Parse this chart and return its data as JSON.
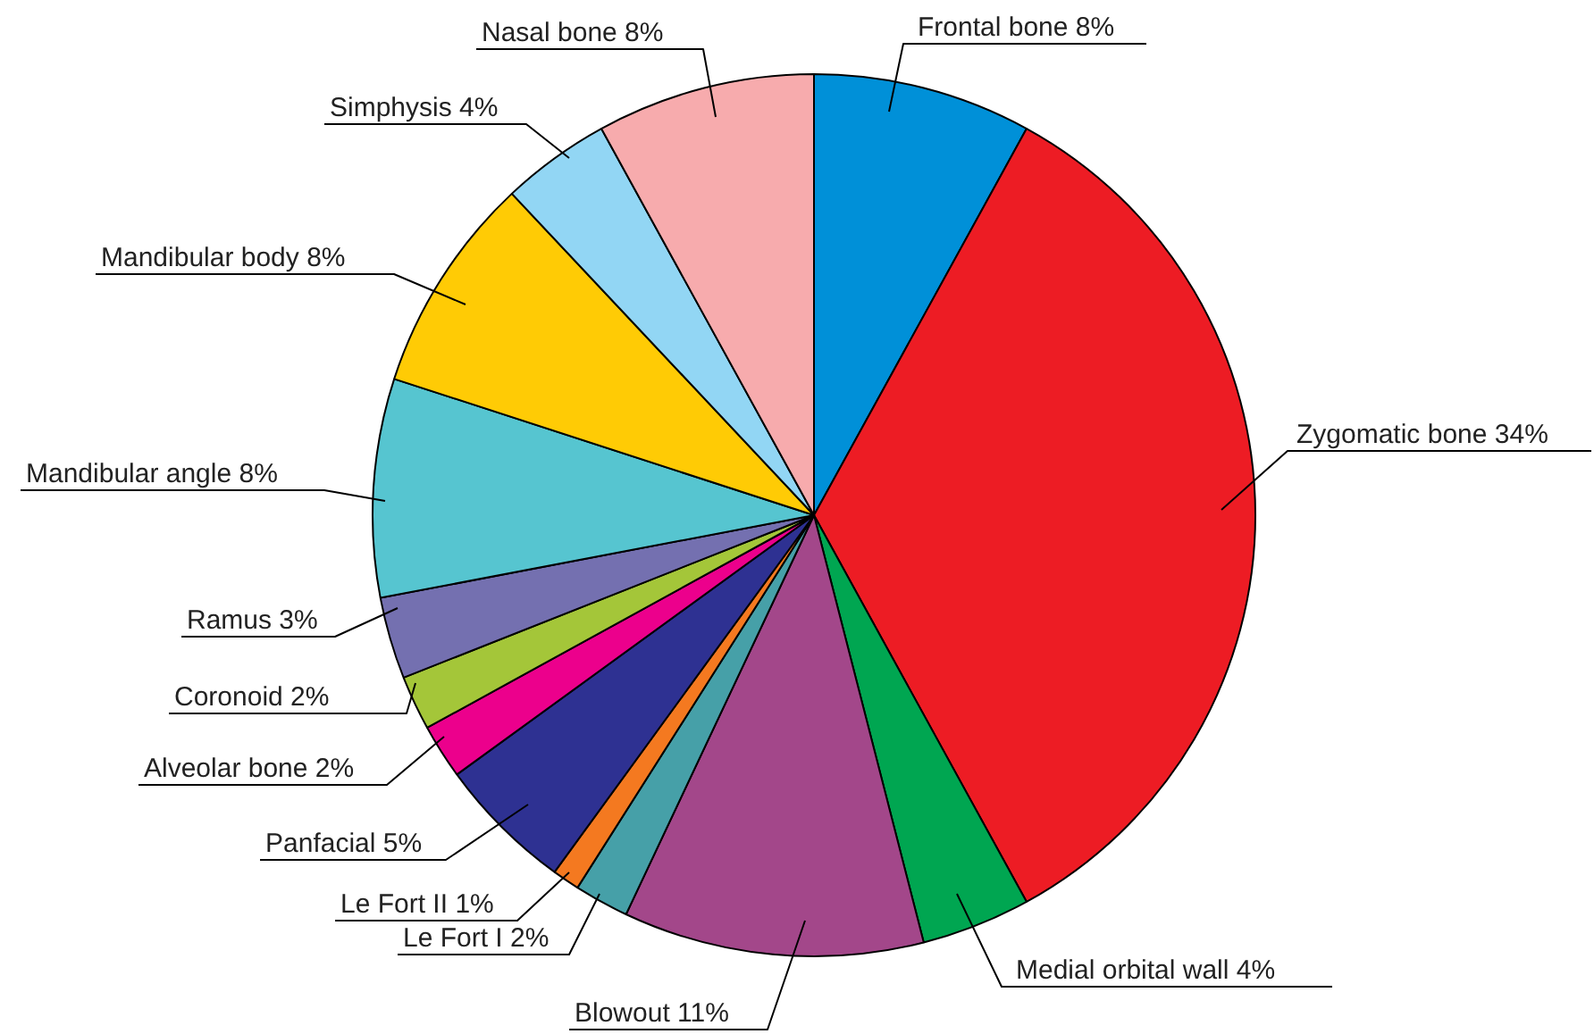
{
  "chart_data": {
    "type": "pie",
    "categories": [
      "Frontal bone",
      "Zygomatic bone",
      "Medial orbital wall",
      "Blowout",
      "Le Fort I",
      "Le Fort II",
      "Panfacial",
      "Alveolar bone",
      "Coronoid",
      "Ramus",
      "Mandibular angle",
      "Mandibular body",
      "Simphysis",
      "Nasal bone"
    ],
    "values": [
      8,
      34,
      4,
      11,
      2,
      1,
      5,
      2,
      2,
      3,
      8,
      8,
      4,
      8
    ],
    "value_labels": [
      "8%",
      "34%",
      "4%",
      "11%",
      "2%",
      "1%",
      "5%",
      "2%",
      "2%",
      "3%",
      "8%",
      "8%",
      "4%",
      "8%"
    ],
    "colors": [
      "#0090d8",
      "#ed1c24",
      "#00a651",
      "#a3478a",
      "#46a0a8",
      "#f47920",
      "#2e3192",
      "#ec008c",
      "#a4c639",
      "#7470b0",
      "#56c5d0",
      "#ffcb05",
      "#92d6f4",
      "#f7abad"
    ]
  }
}
